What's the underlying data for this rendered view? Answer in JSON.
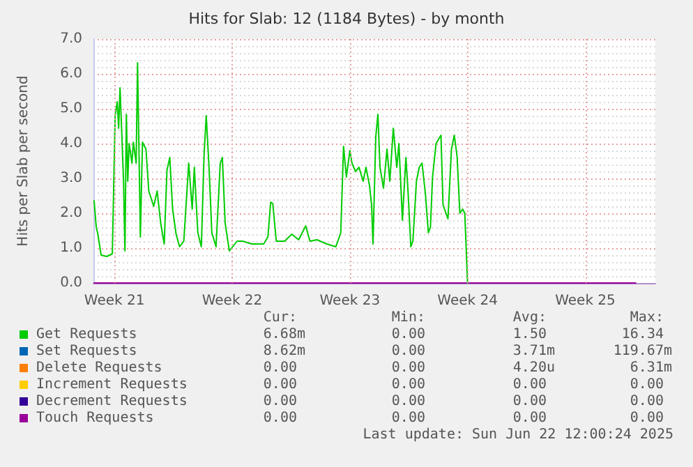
{
  "chart_data": {
    "type": "line",
    "title": "Hits for Slab: 12 (1184 Bytes) - by month",
    "ylabel": "Hits per Slab per second",
    "xlim": [
      "2025-05-21T06:00",
      "2025-06-23T16:00"
    ],
    "xticks": [
      {
        "value": "2025-05-22T12:00",
        "label": "Week 21"
      },
      {
        "value": "2025-05-29T12:00",
        "label": "Week 22"
      },
      {
        "value": "2025-06-05T12:00",
        "label": "Week 23"
      },
      {
        "value": "2025-06-12T12:00",
        "label": "Week 24"
      },
      {
        "value": "2025-06-19T12:00",
        "label": "Week 25"
      }
    ],
    "ylim": [
      0,
      7
    ],
    "yticks": [
      {
        "value": 0,
        "label": "0.0"
      },
      {
        "value": 1,
        "label": "1.0"
      },
      {
        "value": 2,
        "label": "2.0"
      },
      {
        "value": 3,
        "label": "3.0"
      },
      {
        "value": 4,
        "label": "4.0"
      },
      {
        "value": 5,
        "label": "5.0"
      },
      {
        "value": 6,
        "label": "6.0"
      },
      {
        "value": 7,
        "label": "7.0"
      }
    ],
    "grid": true,
    "legend": "bottom",
    "marker": "none",
    "line_style": "solid",
    "series": [
      {
        "name": "Get Requests",
        "color": "#00cc00",
        "x": [
          "2025-05-21T07:00",
          "2025-05-21T10:00",
          "2025-05-21T12:00",
          "2025-05-21T17:00",
          "2025-05-22T01:00",
          "2025-05-22T09:00",
          "2025-05-22T13:00",
          "2025-05-22T16:00",
          "2025-05-22T18:00",
          "2025-05-22T20:00",
          "2025-05-23T01:00",
          "2025-05-23T03:00",
          "2025-05-23T05:00",
          "2025-05-23T07:00",
          "2025-05-23T09:00",
          "2025-05-23T13:00",
          "2025-05-23T15:00",
          "2025-05-23T19:00",
          "2025-05-23T21:00",
          "2025-05-24T01:00",
          "2025-05-24T04:00",
          "2025-05-24T09:00",
          "2025-05-24T13:00",
          "2025-05-24T20:00",
          "2025-05-25T01:00",
          "2025-05-25T06:00",
          "2025-05-25T11:00",
          "2025-05-25T15:00",
          "2025-05-25T19:00",
          "2025-05-25T23:00",
          "2025-05-26T04:00",
          "2025-05-26T09:00",
          "2025-05-26T15:00",
          "2025-05-26T22:00",
          "2025-05-27T03:00",
          "2025-05-27T06:00",
          "2025-05-27T11:00",
          "2025-05-27T16:00",
          "2025-05-27T20:00",
          "2025-05-27T23:00",
          "2025-05-28T03:00",
          "2025-05-28T07:00",
          "2025-05-28T13:00",
          "2025-05-28T19:00",
          "2025-05-28T22:00",
          "2025-05-29T02:00",
          "2025-05-29T08:00",
          "2025-05-29T19:00",
          "2025-05-30T03:00",
          "2025-05-30T16:00",
          "2025-05-31T09:00",
          "2025-05-31T15:00",
          "2025-05-31T19:00",
          "2025-05-31T22:00",
          "2025-06-01T03:00",
          "2025-06-01T15:00",
          "2025-06-02T01:00",
          "2025-06-02T11:00",
          "2025-06-02T21:00",
          "2025-06-03T03:00",
          "2025-06-03T13:00",
          "2025-06-04T03:00",
          "2025-06-04T16:00",
          "2025-06-04T23:00",
          "2025-06-05T03:00",
          "2025-06-05T07:00",
          "2025-06-05T12:00",
          "2025-06-05T15:00",
          "2025-06-05T20:00",
          "2025-06-06T01:00",
          "2025-06-06T07:00",
          "2025-06-06T11:00",
          "2025-06-06T16:00",
          "2025-06-06T19:00",
          "2025-06-06T21:00",
          "2025-06-07T01:00",
          "2025-06-07T04:00",
          "2025-06-07T07:00",
          "2025-06-07T12:00",
          "2025-06-07T17:00",
          "2025-06-07T21:00",
          "2025-06-08T02:00",
          "2025-06-08T07:00",
          "2025-06-08T10:00",
          "2025-06-08T15:00",
          "2025-06-08T20:00",
          "2025-06-08T23:00",
          "2025-06-09T03:00",
          "2025-06-09T06:00",
          "2025-06-09T11:00",
          "2025-06-09T15:00",
          "2025-06-09T19:00",
          "2025-06-10T00:00",
          "2025-06-10T04:00",
          "2025-06-10T07:00",
          "2025-06-10T10:00",
          "2025-06-10T15:00",
          "2025-06-10T22:00",
          "2025-06-11T01:00",
          "2025-06-11T08:00",
          "2025-06-11T13:00",
          "2025-06-11T17:00",
          "2025-06-11T21:00",
          "2025-06-12T01:00",
          "2025-06-12T05:00",
          "2025-06-12T08:00",
          "2025-06-12T12:00"
        ],
        "values": [
          2.36,
          1.6,
          1.44,
          0.8,
          0.76,
          0.84,
          4.8,
          5.2,
          4.44,
          5.6,
          2.92,
          0.92,
          4.84,
          2.92,
          4.0,
          3.44,
          4.04,
          3.44,
          6.32,
          1.32,
          4.04,
          3.84,
          2.64,
          2.2,
          2.64,
          1.72,
          1.12,
          3.24,
          3.6,
          2.12,
          1.4,
          1.04,
          1.2,
          3.44,
          2.12,
          3.32,
          1.44,
          1.04,
          3.72,
          4.8,
          3.32,
          1.44,
          1.04,
          3.44,
          3.6,
          1.72,
          0.92,
          1.2,
          1.2,
          1.12,
          1.12,
          1.32,
          2.32,
          2.28,
          1.2,
          1.2,
          1.4,
          1.24,
          1.64,
          1.2,
          1.24,
          1.12,
          1.04,
          1.44,
          3.92,
          3.04,
          3.8,
          3.44,
          3.2,
          3.32,
          2.92,
          3.32,
          2.8,
          2.24,
          1.12,
          4.2,
          4.84,
          3.32,
          2.72,
          3.84,
          2.92,
          4.44,
          3.32,
          4.0,
          1.8,
          3.6,
          2.64,
          1.04,
          1.2,
          2.92,
          3.32,
          3.44,
          2.52,
          1.44,
          1.6,
          3.04,
          4.0,
          4.24,
          2.24,
          1.84,
          3.84,
          4.24,
          3.64,
          2.0,
          2.12,
          2.0,
          0
        ]
      },
      {
        "name": "Set Requests",
        "color": "#0066b3"
      },
      {
        "name": "Delete Requests",
        "color": "#ff8000"
      },
      {
        "name": "Increment Requests",
        "color": "#ffcc00"
      },
      {
        "name": "Decrement Requests",
        "color": "#330099"
      },
      {
        "name": "Touch Requests",
        "color": "#990099",
        "x": [
          "2025-05-21T07:00",
          "2025-06-22T12:00"
        ],
        "values": [
          0,
          0
        ]
      }
    ],
    "annotations": [
      "Cur:",
      "Min:",
      "Avg:",
      "Max:",
      "6.68m",
      "0.00",
      "1.50",
      "16.34",
      "8.62m",
      "0.00",
      "3.71m",
      "119.67m",
      "0.00",
      "0.00",
      "4.20u",
      "6.31m",
      "0.00",
      "0.00",
      "0.00",
      "0.00",
      "0.00",
      "0.00",
      "0.00",
      "0.00",
      "0.00",
      "0.00",
      "0.00",
      "0.00",
      "Last update: Sun Jun 22 12:00:24 2025"
    ]
  }
}
